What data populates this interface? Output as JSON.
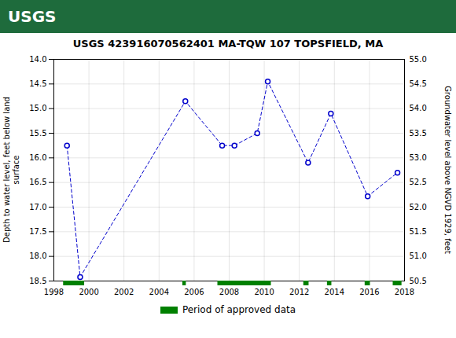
{
  "chart_data": {
    "type": "line",
    "title": "USGS 423916070562401 MA-TQW 107 TOPSFIELD, MA",
    "annotations": [
      {
        "text": "USGS",
        "color": "#1E6B3C"
      }
    ],
    "ylabel": "Depth to water level, feet below land\nsurface",
    "y2label": "Groundwater level above NGVD 1929, feet",
    "x": [
      1998.75,
      1999.5,
      2005.5,
      2007.6,
      2008.3,
      2009.6,
      2010.2,
      2012.5,
      2013.8,
      2015.9,
      2017.6
    ],
    "values": [
      15.75,
      18.42,
      14.85,
      15.75,
      15.75,
      15.5,
      14.45,
      16.1,
      15.1,
      16.78,
      16.3
    ],
    "color": "#0000CC",
    "line_style": "dashed",
    "marker": "circle",
    "xlim": [
      1998,
      2018
    ],
    "xticks": [
      1998,
      2000,
      2002,
      2004,
      2006,
      2008,
      2010,
      2012,
      2014,
      2016,
      2018
    ],
    "ylim": [
      18.5,
      14.0
    ],
    "yticks": [
      {
        "value": 14.0,
        "label": "14.0"
      },
      14.5,
      {
        "value": 15.0,
        "label": "15.0"
      },
      15.5,
      {
        "value": 16.0,
        "label": "16.0"
      },
      16.5,
      {
        "value": 17.0,
        "label": "17.0"
      },
      17.5,
      {
        "value": 18.0,
        "label": "18.0"
      },
      18.5
    ],
    "y2lim": [
      50.5,
      55.0
    ],
    "y2ticks": [
      {
        "value": 55.0,
        "label": "55.0"
      },
      54.5,
      {
        "value": 54.0,
        "label": "54.0"
      },
      53.5,
      {
        "value": 53.0,
        "label": "53.0"
      },
      52.5,
      {
        "value": 52.0,
        "label": "52.0"
      },
      51.5,
      {
        "value": 51.0,
        "label": "51.0"
      },
      50.5
    ],
    "grid": true,
    "legend": "bottom",
    "approved_periods": {
      "name": "Period of approved data",
      "color": "#008000",
      "ranges": [
        [
          1998.55,
          1999.75
        ],
        [
          2005.35,
          2005.55
        ],
        [
          2007.35,
          2010.4
        ],
        [
          2012.25,
          2012.55
        ],
        [
          2013.6,
          2013.85
        ],
        [
          2015.75,
          2016.05
        ],
        [
          2017.35,
          2017.85
        ]
      ]
    }
  }
}
